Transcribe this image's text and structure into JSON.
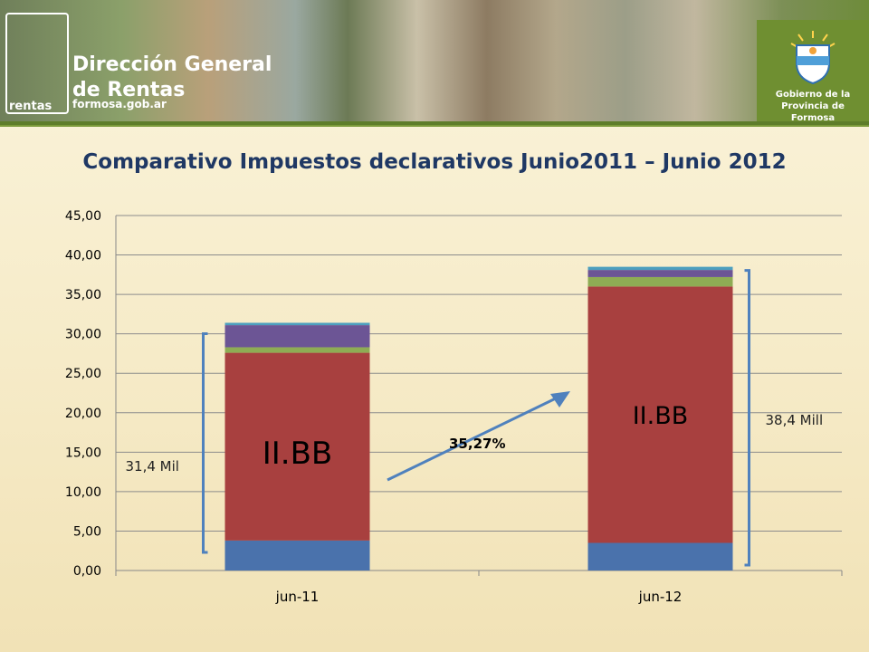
{
  "header": {
    "org_name_line1": "Dirección General",
    "org_name_line2": "de Rentas",
    "org_small": "rentas",
    "org_url": "formosa.gob.ar",
    "gov_line1": "Gobierno de la",
    "gov_line2": "Provincia de Formosa",
    "brand_color": "#7c9a3a"
  },
  "chart_data": {
    "type": "bar",
    "stacked": true,
    "title": "Comparativo Impuestos declarativos  Junio2011 – Junio 2012",
    "categories": [
      "jun-11",
      "jun-12"
    ],
    "ylim": [
      0,
      45
    ],
    "yticks": [
      "0,00",
      "5,00",
      "10,00",
      "15,00",
      "20,00",
      "25,00",
      "30,00",
      "35,00",
      "40,00",
      "45,00"
    ],
    "ytick_values": [
      0,
      5,
      10,
      15,
      20,
      25,
      30,
      35,
      40,
      45
    ],
    "grid": true,
    "series": [
      {
        "values": [
          3.8,
          3.5
        ],
        "color": "#4a72ac"
      },
      {
        "name": "II.BB",
        "values": [
          23.8,
          32.5
        ],
        "color": "#a8403f"
      },
      {
        "values": [
          0.7,
          1.2
        ],
        "color": "#8eac54"
      },
      {
        "values": [
          2.8,
          0.9
        ],
        "color": "#6c5595"
      },
      {
        "values": [
          0.3,
          0.4
        ],
        "color": "#4c9fbf"
      }
    ],
    "annotations": {
      "bar_labels": [
        "II.BB",
        "II.BB"
      ],
      "left_total": "31,4 Mil",
      "right_total": "38,4 Mill",
      "growth": "35,27%"
    },
    "annotation_color": "#4f81bd"
  }
}
